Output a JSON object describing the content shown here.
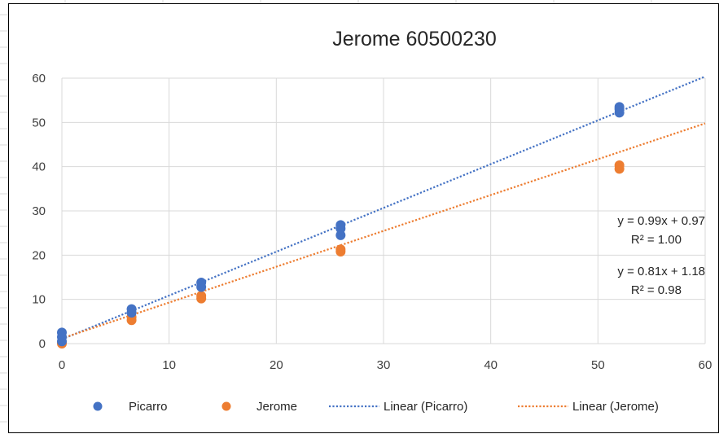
{
  "chart_data": {
    "type": "scatter",
    "title": "Jerome 60500230",
    "xlabel": "",
    "ylabel": "",
    "xlim": [
      0,
      60
    ],
    "ylim": [
      0,
      60
    ],
    "xticks": [
      "0",
      "10",
      "20",
      "30",
      "40",
      "50",
      "60"
    ],
    "yticks": [
      "0",
      "10",
      "20",
      "30",
      "40",
      "50",
      "60"
    ],
    "grid": true,
    "legend_position": "bottom",
    "series": [
      {
        "name": "Picarro",
        "color": "#4472C4",
        "points": [
          {
            "x": 0,
            "y": 0.5
          },
          {
            "x": 0,
            "y": 1.5
          },
          {
            "x": 0,
            "y": 2.5
          },
          {
            "x": 6.5,
            "y": 7.0
          },
          {
            "x": 6.5,
            "y": 7.8
          },
          {
            "x": 13,
            "y": 12.8
          },
          {
            "x": 13,
            "y": 13.8
          },
          {
            "x": 26,
            "y": 24.5
          },
          {
            "x": 26,
            "y": 26.0
          },
          {
            "x": 26,
            "y": 26.8
          },
          {
            "x": 52,
            "y": 52.2
          },
          {
            "x": 52,
            "y": 53.0
          },
          {
            "x": 52,
            "y": 53.5
          }
        ]
      },
      {
        "name": "Jerome",
        "color": "#ED7D31",
        "points": [
          {
            "x": 0,
            "y": 0.0
          },
          {
            "x": 0,
            "y": 0.3
          },
          {
            "x": 6.5,
            "y": 5.3
          },
          {
            "x": 6.5,
            "y": 6.0
          },
          {
            "x": 13,
            "y": 10.2
          },
          {
            "x": 13,
            "y": 10.8
          },
          {
            "x": 26,
            "y": 20.8
          },
          {
            "x": 26,
            "y": 21.3
          },
          {
            "x": 52,
            "y": 39.5
          },
          {
            "x": 52,
            "y": 40.3
          }
        ]
      }
    ],
    "trendlines": [
      {
        "name": "Linear (Picarro)",
        "color": "#4472C4",
        "slope": 0.99,
        "intercept": 0.97,
        "equation": "y = 0.99x + 0.97",
        "r2": "R² = 1.00"
      },
      {
        "name": "Linear (Jerome)",
        "color": "#ED7D31",
        "slope": 0.81,
        "intercept": 1.18,
        "equation": "y = 0.81x + 1.18",
        "r2": "R² = 0.98"
      }
    ],
    "legend": [
      "Picarro",
      "Jerome",
      "Linear (Picarro)",
      "Linear (Jerome)"
    ]
  }
}
